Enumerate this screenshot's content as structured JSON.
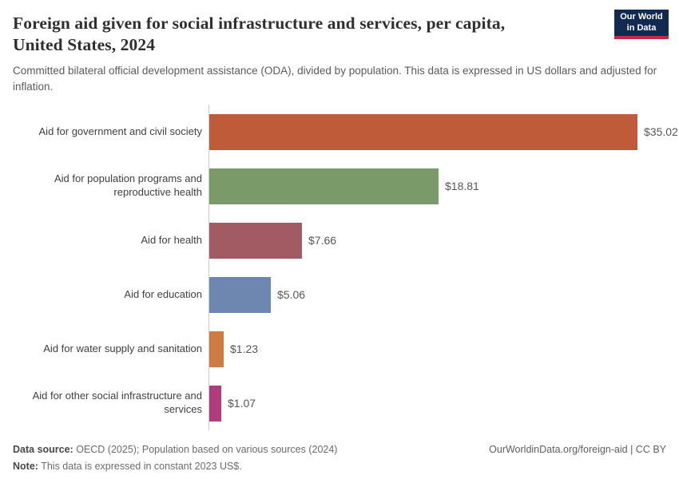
{
  "header": {
    "title_lines": [
      "Foreign aid given for social infrastructure and services, per capita,",
      "United States, 2024"
    ],
    "subtitle": "Committed bilateral official development assistance (ODA), divided by population. This data is expressed in US dollars and adjusted for inflation.",
    "logo": {
      "line1": "Our World",
      "line2": "in Data",
      "bg_color": "#122950",
      "accent_color": "#c52941"
    }
  },
  "chart_data": {
    "type": "bar",
    "orientation": "horizontal",
    "title": "Foreign aid given for social infrastructure and services, per capita, United States, 2024",
    "unit": "US dollars per capita, constant 2023 US$",
    "categories": [
      "Aid for government and civil society",
      "Aid for population programs and reproductive health",
      "Aid for health",
      "Aid for education",
      "Aid for water supply and sanitation",
      "Aid for other social infrastructure and services"
    ],
    "values": [
      35.02,
      18.81,
      7.66,
      5.06,
      1.23,
      1.07
    ],
    "value_labels": [
      "$35.02",
      "$18.81",
      "$7.66",
      "$5.06",
      "$1.23",
      "$1.07"
    ],
    "colors": [
      "#c05b39",
      "#7a9b69",
      "#a25b62",
      "#6d87b1",
      "#ce7c43",
      "#b13c7d"
    ],
    "xlim": [
      0,
      39
    ],
    "grid": false,
    "axis_color": "#cccccc",
    "legend": "none"
  },
  "footer": {
    "datasource_label": "Data source:",
    "datasource_text": " OECD (2025); Population based on various sources (2024)",
    "note_label": "Note:",
    "note_text": " This data is expressed in constant 2023 US$.",
    "citation": "OurWorldinData.org/foreign-aid | CC BY"
  }
}
